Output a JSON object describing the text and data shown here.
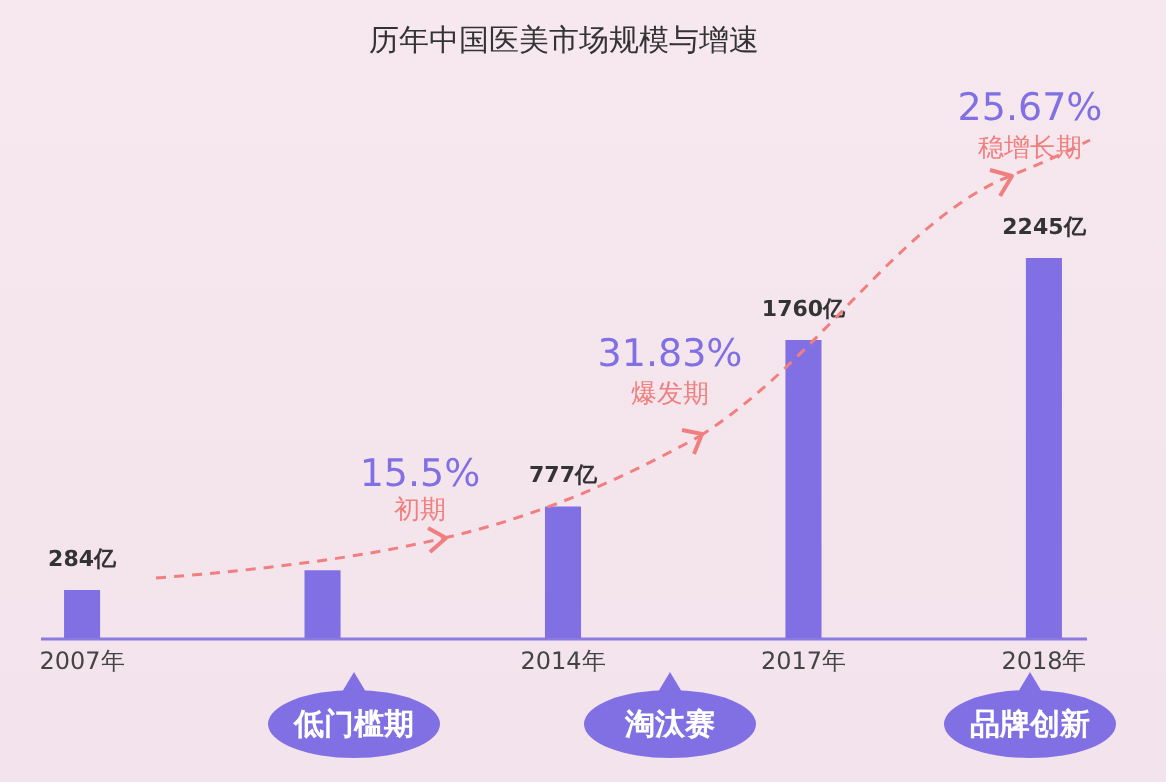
{
  "chart_data": {
    "type": "bar",
    "title": "历年中国医美市场规模与增速",
    "categories": [
      "2007年",
      null,
      "2014年",
      "2017年",
      "2018年"
    ],
    "values": [
      284,
      400,
      777,
      1760,
      2245
    ],
    "value_labels": [
      "284亿",
      null,
      "777亿",
      "1760亿",
      "2245亿"
    ],
    "color": "#8170e3",
    "tick_labels": "x",
    "grid": false,
    "annotations": [
      "15.5%",
      "初期",
      "31.83%",
      "爆发期",
      "25.67%",
      "稳增长期",
      "低门槛期",
      "淘汰赛",
      "品牌创新"
    ]
  }
}
